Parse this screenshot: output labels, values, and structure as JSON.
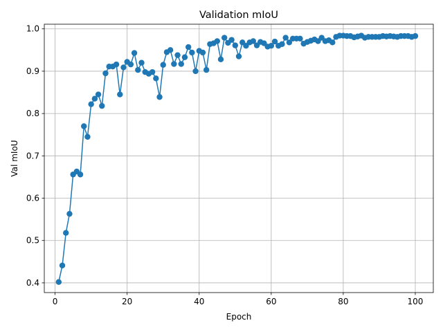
{
  "chart_data": {
    "type": "line",
    "title": "Validation mIoU",
    "xlabel": "Epoch",
    "ylabel": "Val mIoU",
    "xlim": [
      -3,
      105
    ],
    "ylim": [
      0.377,
      1.011
    ],
    "xticks": [
      0,
      20,
      40,
      60,
      80,
      100
    ],
    "yticks": [
      0.4,
      0.5,
      0.6,
      0.7,
      0.8,
      0.9,
      1.0
    ],
    "xtick_labels": [
      "0",
      "20",
      "40",
      "60",
      "80",
      "100"
    ],
    "ytick_labels": [
      "0.4",
      "0.5",
      "0.6",
      "0.7",
      "0.8",
      "0.9",
      "1.0"
    ],
    "grid": true,
    "color": "#1f77b4",
    "markers": true,
    "x": [
      1,
      2,
      3,
      4,
      5,
      6,
      7,
      8,
      9,
      10,
      11,
      12,
      13,
      14,
      15,
      16,
      17,
      18,
      19,
      20,
      21,
      22,
      23,
      24,
      25,
      26,
      27,
      28,
      29,
      30,
      31,
      32,
      33,
      34,
      35,
      36,
      37,
      38,
      39,
      40,
      41,
      42,
      43,
      44,
      45,
      46,
      47,
      48,
      49,
      50,
      51,
      52,
      53,
      54,
      55,
      56,
      57,
      58,
      59,
      60,
      61,
      62,
      63,
      64,
      65,
      66,
      67,
      68,
      69,
      70,
      71,
      72,
      73,
      74,
      75,
      76,
      77,
      78,
      79,
      80,
      81,
      82,
      83,
      84,
      85,
      86,
      87,
      88,
      89,
      90,
      91,
      92,
      93,
      94,
      95,
      96,
      97,
      98,
      99,
      100
    ],
    "y": [
      0.402,
      0.441,
      0.518,
      0.563,
      0.656,
      0.663,
      0.656,
      0.77,
      0.745,
      0.822,
      0.835,
      0.845,
      0.818,
      0.895,
      0.911,
      0.911,
      0.916,
      0.845,
      0.909,
      0.922,
      0.916,
      0.943,
      0.903,
      0.92,
      0.898,
      0.894,
      0.898,
      0.883,
      0.839,
      0.915,
      0.945,
      0.95,
      0.917,
      0.938,
      0.917,
      0.933,
      0.957,
      0.944,
      0.9,
      0.948,
      0.944,
      0.903,
      0.964,
      0.966,
      0.971,
      0.928,
      0.979,
      0.967,
      0.974,
      0.961,
      0.935,
      0.968,
      0.96,
      0.968,
      0.971,
      0.961,
      0.969,
      0.966,
      0.958,
      0.96,
      0.97,
      0.96,
      0.964,
      0.979,
      0.968,
      0.977,
      0.977,
      0.977,
      0.965,
      0.969,
      0.972,
      0.975,
      0.971,
      0.979,
      0.971,
      0.973,
      0.968,
      0.981,
      0.984,
      0.984,
      0.983,
      0.983,
      0.98,
      0.982,
      0.984,
      0.979,
      0.981,
      0.981,
      0.981,
      0.981,
      0.983,
      0.982,
      0.983,
      0.982,
      0.981,
      0.983,
      0.983,
      0.983,
      0.981,
      0.983
    ]
  }
}
